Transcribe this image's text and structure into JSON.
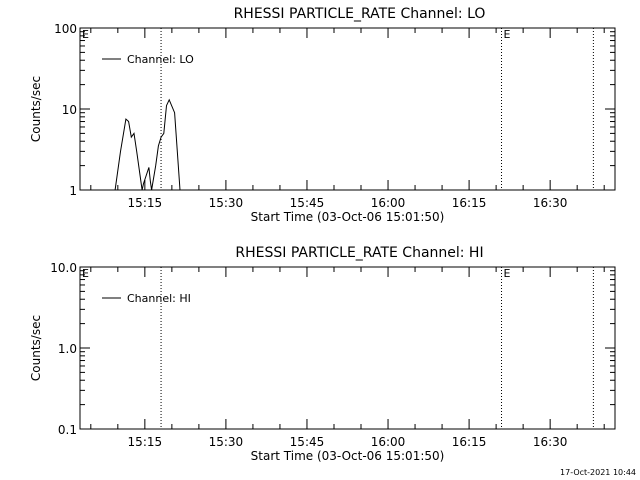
{
  "timestamp": "17-Oct-2021 10:44",
  "chart_data": [
    {
      "type": "line",
      "title": "RHESSI PARTICLE_RATE Channel: LO",
      "xlabel": "Start Time (03-Oct-06 15:01:50)",
      "ylabel": "Counts/sec",
      "yscale": "log",
      "ylim": [
        1,
        100
      ],
      "y_tick_labels": [
        "1",
        "10",
        "100"
      ],
      "xlim": [
        "15:03:00",
        "16:42:00"
      ],
      "x_tick_labels": [
        "15:15",
        "15:30",
        "15:45",
        "16:00",
        "16:15",
        "16:30"
      ],
      "legend": "top-left",
      "series": [
        {
          "name": "Channel: LO",
          "x": [
            "15:09:30",
            "15:10:30",
            "15:11:30",
            "15:12:00",
            "15:12:30",
            "15:13:00",
            "15:13:30",
            "15:14:30",
            "15:14:45",
            "15:15:45",
            "15:16:00",
            "15:16:15",
            "15:17:00",
            "15:17:30",
            "15:18:00",
            "15:18:30",
            "15:19:00",
            "15:19:30",
            "15:20:30",
            "15:21:30"
          ],
          "y": [
            1,
            3.0,
            7.5,
            7.0,
            4.5,
            5.0,
            3.0,
            1,
            1.2,
            1.9,
            1.3,
            1,
            2.0,
            3.5,
            4.5,
            5.0,
            11.0,
            13.0,
            9.0,
            1
          ]
        }
      ],
      "markers": [
        {
          "label": "E",
          "x": "15:03:00"
        },
        {
          "label": "E",
          "x": "16:21:00"
        }
      ],
      "dotted_lines_x": [
        "15:18:00",
        "16:21:00",
        "16:38:00"
      ]
    },
    {
      "type": "line",
      "title": "RHESSI PARTICLE_RATE Channel: HI",
      "xlabel": "Start Time (03-Oct-06 15:01:50)",
      "ylabel": "Counts/sec",
      "yscale": "log",
      "ylim": [
        0.1,
        10
      ],
      "y_tick_labels": [
        "0.1",
        "1.0",
        "10.0"
      ],
      "xlim": [
        "15:03:00",
        "16:42:00"
      ],
      "x_tick_labels": [
        "15:15",
        "15:30",
        "15:45",
        "16:00",
        "16:15",
        "16:30"
      ],
      "legend": "top-left",
      "series": [
        {
          "name": "Channel: HI",
          "x": [],
          "y": []
        }
      ],
      "markers": [
        {
          "label": "E",
          "x": "15:03:00"
        },
        {
          "label": "E",
          "x": "16:21:00"
        }
      ],
      "dotted_lines_x": [
        "15:18:00",
        "16:21:00",
        "16:38:00"
      ]
    }
  ]
}
